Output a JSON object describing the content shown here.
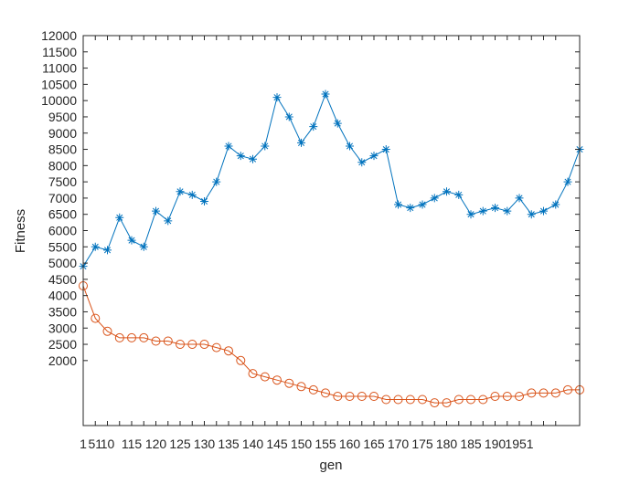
{
  "chart_data": {
    "type": "line",
    "title": "",
    "xlabel": "gen",
    "ylabel": "Fitness",
    "xlim": [
      1,
      2050
    ],
    "ylim": [
      0,
      12000
    ],
    "grid": false,
    "x_tick_values": [
      1,
      51,
      101,
      151,
      201,
      251,
      301,
      351,
      401,
      451,
      501,
      551,
      601,
      651,
      701,
      751,
      801,
      851,
      901,
      951,
      1001,
      1051,
      1101,
      1151,
      1201,
      1251,
      1301,
      1351,
      1401,
      1451,
      1501,
      1551,
      1601,
      1651,
      1701,
      1751,
      1801,
      1851,
      1901,
      1951
    ],
    "x_tick_text": [
      "1",
      "51",
      "10",
      "",
      "115",
      "",
      "120",
      "",
      "125",
      "",
      "130",
      "",
      "135",
      "",
      "140",
      "",
      "145",
      "",
      "150",
      "",
      "155",
      "",
      "160",
      "",
      "165",
      "",
      "170",
      "",
      "175",
      "",
      "180",
      "",
      "185",
      "",
      "190",
      "",
      "1951",
      "",
      "",
      ""
    ],
    "y_tick_values": [
      2000,
      2500,
      3000,
      3500,
      4000,
      4500,
      5000,
      5500,
      6000,
      6500,
      7000,
      7500,
      8000,
      8500,
      9000,
      9500,
      10000,
      10500,
      11000,
      11500,
      12000
    ],
    "y_tick_text": [
      "2000",
      "2500",
      "3000",
      "3500",
      "4000",
      "4500",
      "5000",
      "5500",
      "6000",
      "6500",
      "7000",
      "7500",
      "8000",
      "8500",
      "9000",
      "9500",
      "10000",
      "10500",
      "11000",
      "11500",
      "12000"
    ],
    "series": [
      {
        "color": "#0072BD",
        "marker": "asterisk",
        "x": [
          1,
          51,
          101,
          151,
          201,
          251,
          301,
          351,
          401,
          451,
          501,
          551,
          601,
          651,
          701,
          751,
          801,
          851,
          901,
          951,
          1001,
          1051,
          1101,
          1151,
          1201,
          1251,
          1301,
          1351,
          1401,
          1451,
          1501,
          1551,
          1601,
          1651,
          1701,
          1751,
          1801,
          1851,
          1901,
          1951,
          2001,
          2050
        ],
        "y": [
          4900,
          5500,
          5400,
          6400,
          5700,
          5500,
          6600,
          6300,
          7200,
          7100,
          6900,
          7500,
          8600,
          8300,
          8200,
          8600,
          10100,
          9500,
          8700,
          9200,
          10200,
          9300,
          8600,
          8100,
          8300,
          8500,
          6800,
          6700,
          6800,
          7000,
          7200,
          7100,
          6500,
          6600,
          6700,
          6600,
          7000,
          6500,
          6600,
          6800,
          7500,
          8500
        ]
      },
      {
        "color": "#D95319",
        "marker": "circle",
        "x": [
          1,
          51,
          101,
          151,
          201,
          251,
          301,
          351,
          401,
          451,
          501,
          551,
          601,
          651,
          701,
          751,
          801,
          851,
          901,
          951,
          1001,
          1051,
          1101,
          1151,
          1201,
          1251,
          1301,
          1351,
          1401,
          1451,
          1501,
          1551,
          1601,
          1651,
          1701,
          1751,
          1801,
          1851,
          1901,
          1951,
          2001,
          2050
        ],
        "y": [
          4300,
          3300,
          2900,
          2700,
          2700,
          2700,
          2600,
          2600,
          2500,
          2500,
          2500,
          2400,
          2300,
          2000,
          1600,
          1500,
          1400,
          1300,
          1200,
          1100,
          1000,
          900,
          900,
          900,
          900,
          800,
          800,
          800,
          800,
          700,
          700,
          800,
          800,
          800,
          900,
          900,
          900,
          1000,
          1000,
          1000,
          1100,
          1100
        ]
      }
    ]
  }
}
